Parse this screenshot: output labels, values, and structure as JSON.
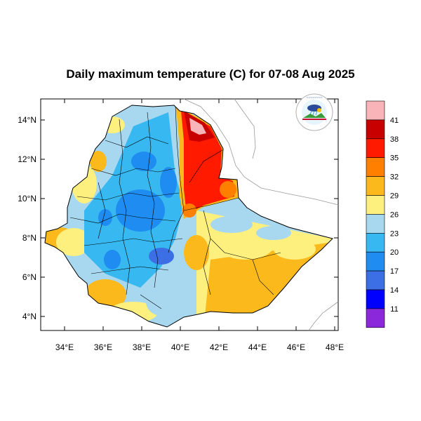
{
  "title": "Daily maximum temperature (C) for 07-08 Aug 2025",
  "x_ticks": [
    "34°E",
    "36°E",
    "38°E",
    "40°E",
    "42°E",
    "44°E",
    "46°E",
    "48°E"
  ],
  "y_ticks": [
    "14°N",
    "12°N",
    "10°N",
    "8°N",
    "6°N",
    "4°N"
  ],
  "colorbar": {
    "labels": [
      "41",
      "38",
      "35",
      "32",
      "29",
      "26",
      "23",
      "20",
      "17",
      "14",
      "11"
    ],
    "colors": [
      "#f8b4b8",
      "#c80000",
      "#ff1a00",
      "#ff8000",
      "#fbb91b",
      "#fdf07e",
      "#a8d8f0",
      "#38b8f0",
      "#1e8cf0",
      "#3c6ee6",
      "#0000ff",
      "#8c28dc"
    ]
  },
  "logo": {
    "alt": "Ethiopian Meteorology Institute logo"
  }
}
